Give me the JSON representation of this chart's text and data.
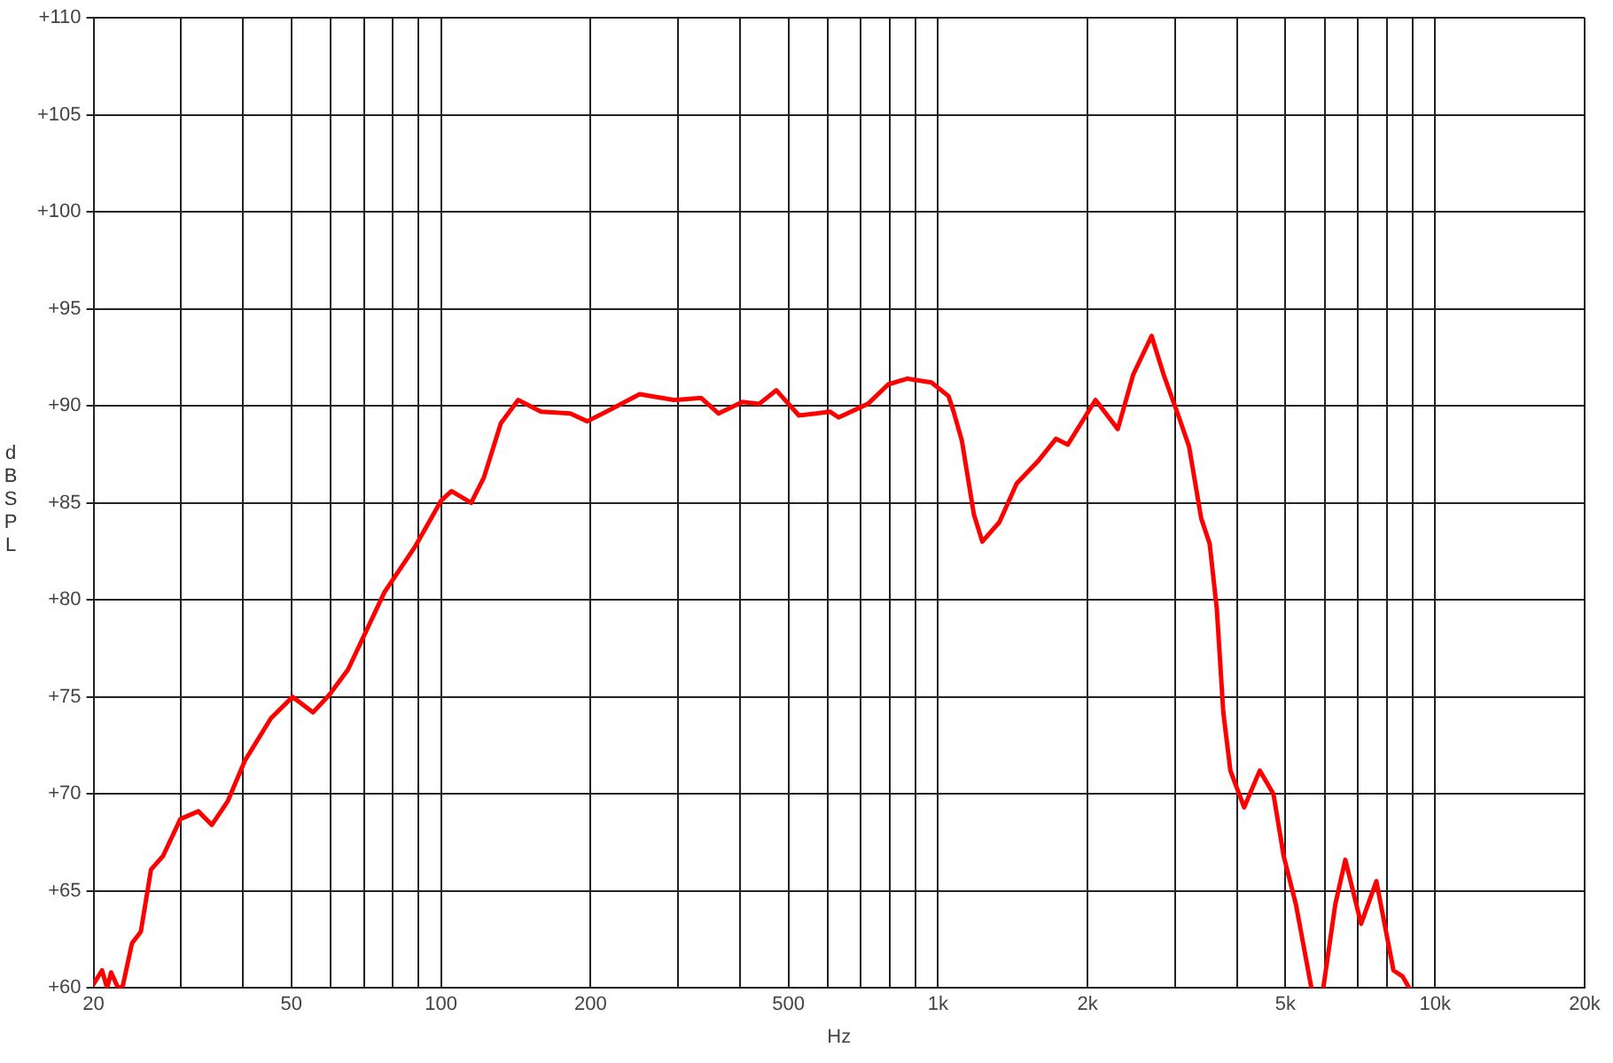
{
  "chart_data": {
    "type": "line",
    "xlabel": "Hz",
    "ylabel": "dB SPL",
    "log": "x",
    "grid": true,
    "legend": false,
    "marker": "none",
    "line_style": "solid",
    "xlim": [
      20,
      20000
    ],
    "xticks": [
      {
        "value": 20,
        "label": "20"
      },
      {
        "value": 30,
        "label": null
      },
      {
        "value": 40,
        "label": null
      },
      {
        "value": 50,
        "label": "50"
      },
      {
        "value": 60,
        "label": null
      },
      {
        "value": 70,
        "label": null
      },
      {
        "value": 80,
        "label": null
      },
      {
        "value": 90,
        "label": null
      },
      {
        "value": 100,
        "label": "100"
      },
      {
        "value": 200,
        "label": "200"
      },
      {
        "value": 300,
        "label": null
      },
      {
        "value": 400,
        "label": null
      },
      {
        "value": 500,
        "label": "500"
      },
      {
        "value": 600,
        "label": null
      },
      {
        "value": 700,
        "label": null
      },
      {
        "value": 800,
        "label": null
      },
      {
        "value": 900,
        "label": null
      },
      {
        "value": 1000,
        "label": "1k"
      },
      {
        "value": 2000,
        "label": "2k"
      },
      {
        "value": 3000,
        "label": null
      },
      {
        "value": 4000,
        "label": null
      },
      {
        "value": 5000,
        "label": "5k"
      },
      {
        "value": 6000,
        "label": null
      },
      {
        "value": 7000,
        "label": null
      },
      {
        "value": 8000,
        "label": null
      },
      {
        "value": 9000,
        "label": null
      },
      {
        "value": 10000,
        "label": "10k"
      },
      {
        "value": 20000,
        "label": "20k"
      }
    ],
    "ylim": [
      60,
      110
    ],
    "yticks": [
      {
        "value": 60,
        "label": "+60"
      },
      {
        "value": 65,
        "label": "+65"
      },
      {
        "value": 70,
        "label": "+70"
      },
      {
        "value": 75,
        "label": "+75"
      },
      {
        "value": 80,
        "label": "+80"
      },
      {
        "value": 85,
        "label": "+85"
      },
      {
        "value": 90,
        "label": "+90"
      },
      {
        "value": 95,
        "label": "+95"
      },
      {
        "value": 100,
        "label": "+100"
      },
      {
        "value": 105,
        "label": "+105"
      },
      {
        "value": 110,
        "label": "+110"
      }
    ],
    "series": [
      {
        "color": "#ff0000",
        "x": [
          20,
          20.8,
          21.3,
          21.7,
          22.4,
          22.9,
          23.9,
          24.9,
          26.1,
          27.6,
          29.9,
          32.5,
          34.6,
          37.2,
          40.3,
          45.5,
          50.3,
          55.3,
          59.6,
          65,
          77,
          89,
          100,
          105,
          115,
          122,
          132,
          143,
          159,
          182,
          197,
          219,
          251,
          294,
          334,
          362,
          404,
          437,
          473,
          525,
          569,
          606,
          631,
          723,
          794,
          868,
          970,
          1050,
          1075,
          1117,
          1181,
          1228,
          1329,
          1440,
          1596,
          1727,
          1825,
          2075,
          2300,
          2470,
          2690,
          2845,
          3055,
          3200,
          3385,
          3520,
          3640,
          3750,
          3875,
          4130,
          4440,
          4730,
          4960,
          5250,
          5640,
          5800,
          5960,
          6300,
          6600,
          7100,
          7620,
          8250,
          8600,
          8870
        ],
        "values": [
          60.2,
          60.9,
          60,
          60.8,
          60,
          60.1,
          62.3,
          62.9,
          66.1,
          66.8,
          68.7,
          69.1,
          68.4,
          69.6,
          71.7,
          73.9,
          75,
          74.2,
          75.1,
          76.4,
          80.4,
          82.8,
          85.1,
          85.6,
          85,
          86.3,
          89.1,
          90.3,
          89.7,
          89.6,
          89.2,
          89.8,
          90.6,
          90.3,
          90.4,
          89.6,
          90.2,
          90.1,
          90.8,
          89.5,
          89.6,
          89.7,
          89.4,
          90.1,
          91.1,
          91.4,
          91.2,
          90.5,
          89.7,
          88.2,
          84.4,
          83,
          84,
          86,
          87.2,
          88.3,
          88,
          90.3,
          88.8,
          91.6,
          93.6,
          91.6,
          89.4,
          87.9,
          84.2,
          82.9,
          79.5,
          74.2,
          71.2,
          69.3,
          71.2,
          70,
          66.8,
          64.3,
          60,
          null,
          60,
          64.3,
          66.6,
          63.3,
          65.5,
          60.9,
          60.6,
          60
        ]
      }
    ]
  }
}
